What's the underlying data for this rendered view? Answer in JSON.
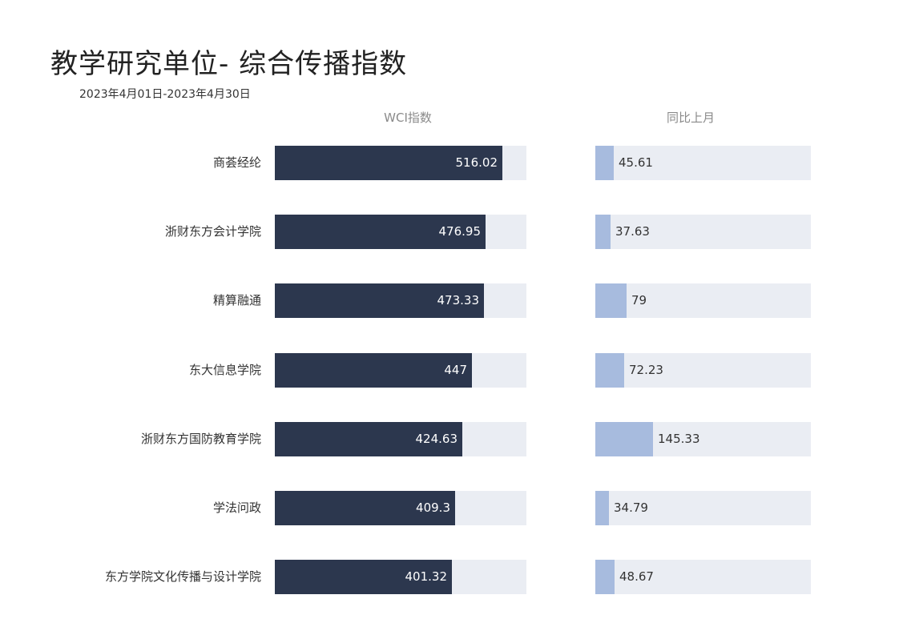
{
  "title": "教学研究单位- 综合传播指数",
  "date_range": "2023年4月01日-2023年4月30日",
  "chart_data": {
    "type": "bar",
    "orientation": "horizontal",
    "categories": [
      "商荟经纶",
      "浙财东方会计学院",
      "精算融通",
      "东大信息学院",
      "浙财东方国防教育学院",
      "学法问政",
      "东方学院文化传播与设计学院"
    ],
    "series": [
      {
        "name": "WCI指数",
        "values": [
          516.02,
          476.95,
          473.33,
          447,
          424.63,
          409.3,
          401.32
        ],
        "labels": [
          "516.02",
          "476.95",
          "473.33",
          "447",
          "424.63",
          "409.3",
          "401.32"
        ],
        "xlim": [
          0,
          570
        ]
      },
      {
        "name": "同比上月",
        "values": [
          45.61,
          37.63,
          79,
          72.23,
          145.33,
          34.79,
          48.67
        ],
        "labels": [
          "45.61",
          "37.63",
          "79",
          "72.23",
          "145.33",
          "34.79",
          "48.67"
        ],
        "xlim": [
          0,
          540
        ]
      }
    ],
    "colors": {
      "wci_bar": "#2c374e",
      "mom_bar": "#a7bbde",
      "track": "#eaedf3"
    },
    "legend": "none",
    "grid": false
  }
}
